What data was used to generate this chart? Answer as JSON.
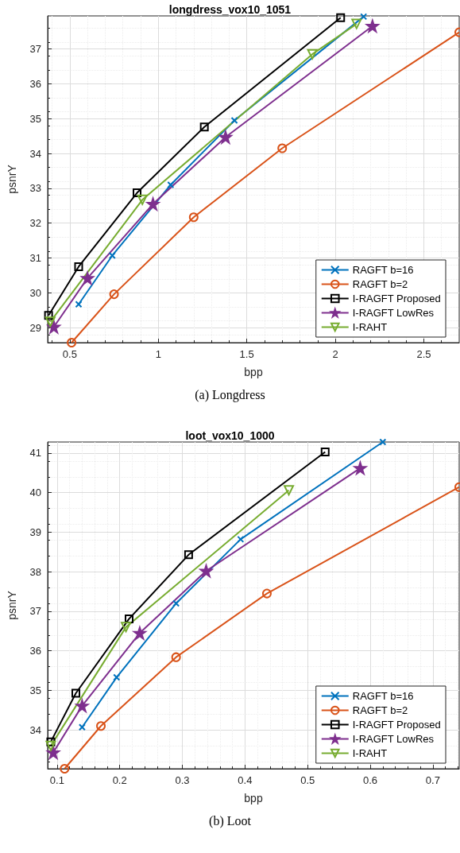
{
  "chart_data": [
    {
      "type": "line",
      "title": "longdress_vox10_1051",
      "xlabel": "bpp",
      "ylabel": "psnrY",
      "annotations": [
        "(a) Longdress"
      ],
      "xlim": [
        0.375,
        2.7
      ],
      "ylim": [
        28.57,
        37.95
      ],
      "xticks": [
        0.5,
        1,
        1.5,
        2,
        2.5
      ],
      "yticks": [
        29,
        30,
        31,
        32,
        33,
        34,
        35,
        36,
        37
      ],
      "grid": true,
      "legend": "bottom right",
      "series": [
        {
          "name": "RAGFT b=16",
          "color": "#0072bd",
          "marker": "cross",
          "x": [
            0.55,
            0.74,
            1.07,
            1.43,
            2.16
          ],
          "values": [
            29.67,
            31.07,
            33.1,
            34.95,
            37.93
          ]
        },
        {
          "name": "RAGFT b=2",
          "color": "#d95319",
          "marker": "circle",
          "x": [
            0.51,
            0.75,
            1.2,
            1.7,
            2.7
          ],
          "values": [
            28.57,
            29.96,
            32.17,
            34.15,
            37.48
          ]
        },
        {
          "name": "I-RAGFT Proposed",
          "color": "#000000",
          "marker": "square",
          "x": [
            0.38,
            0.55,
            0.88,
            1.26,
            2.03
          ],
          "values": [
            29.35,
            30.75,
            32.87,
            34.76,
            37.9
          ]
        },
        {
          "name": "I-RAGFT LowRes",
          "color": "#7e2f8e",
          "marker": "star",
          "x": [
            0.41,
            0.6,
            0.97,
            1.38,
            2.21
          ],
          "values": [
            29.02,
            30.42,
            32.55,
            34.47,
            37.66
          ]
        },
        {
          "name": "I-RAHT",
          "color": "#77ac30",
          "marker": "triangle",
          "x": [
            0.39,
            0.91,
            1.87,
            2.12
          ],
          "values": [
            29.17,
            32.67,
            36.85,
            37.72
          ]
        }
      ]
    },
    {
      "type": "line",
      "title": "loot_vox10_1000",
      "xlabel": "bpp",
      "ylabel": "psnrY",
      "annotations": [
        "(b) Loot"
      ],
      "xlim": [
        0.085,
        0.742
      ],
      "ylim": [
        33.02,
        41.28
      ],
      "xticks": [
        0.1,
        0.2,
        0.3,
        0.4,
        0.5,
        0.6,
        0.7
      ],
      "yticks": [
        34,
        35,
        36,
        37,
        38,
        39,
        40,
        41
      ],
      "grid": true,
      "legend": "bottom right",
      "series": [
        {
          "name": "RAGFT b=16",
          "color": "#0072bd",
          "marker": "cross",
          "x": [
            0.14,
            0.195,
            0.29,
            0.393,
            0.62
          ],
          "values": [
            34.07,
            35.33,
            37.2,
            38.82,
            41.28
          ]
        },
        {
          "name": "RAGFT b=2",
          "color": "#d95319",
          "marker": "circle",
          "x": [
            0.112,
            0.17,
            0.29,
            0.435,
            0.742
          ],
          "values": [
            33.02,
            34.1,
            35.84,
            37.45,
            40.14
          ]
        },
        {
          "name": "I-RAGFT Proposed",
          "color": "#000000",
          "marker": "square",
          "x": [
            0.09,
            0.13,
            0.215,
            0.31,
            0.528
          ],
          "values": [
            33.7,
            34.93,
            36.81,
            38.43,
            41.03
          ]
        },
        {
          "name": "I-RAGFT LowRes",
          "color": "#7e2f8e",
          "marker": "star",
          "x": [
            0.094,
            0.14,
            0.232,
            0.338,
            0.584
          ],
          "values": [
            33.43,
            34.61,
            36.45,
            38.02,
            40.62
          ]
        },
        {
          "name": "I-RAHT",
          "color": "#77ac30",
          "marker": "triangle",
          "x": [
            0.09,
            0.21,
            0.47
          ],
          "values": [
            33.6,
            36.6,
            40.06
          ]
        }
      ]
    }
  ]
}
